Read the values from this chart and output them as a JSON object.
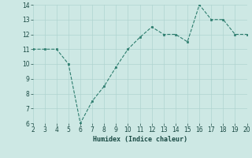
{
  "x": [
    2,
    3,
    4,
    5,
    6,
    7,
    8,
    9,
    10,
    11,
    12,
    13,
    14,
    15,
    16,
    17,
    18,
    19,
    20
  ],
  "y": [
    11,
    11,
    11,
    10,
    6,
    7.5,
    8.5,
    9.8,
    11,
    11.8,
    12.5,
    12,
    12,
    11.5,
    14,
    13,
    13,
    12,
    12
  ],
  "xlabel": "Humidex (Indice chaleur)",
  "xlim": [
    2,
    20
  ],
  "ylim": [
    6,
    14
  ],
  "yticks": [
    6,
    7,
    8,
    9,
    10,
    11,
    12,
    13,
    14
  ],
  "xticks": [
    2,
    3,
    4,
    5,
    6,
    7,
    8,
    9,
    10,
    11,
    12,
    13,
    14,
    15,
    16,
    17,
    18,
    19,
    20
  ],
  "line_color": "#2d7d6e",
  "bg_color": "#cde8e4",
  "grid_color": "#b0d4d0"
}
